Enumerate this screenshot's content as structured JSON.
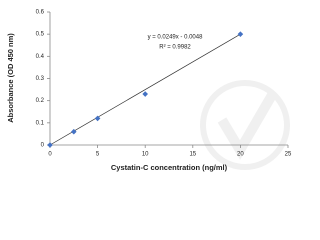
{
  "chart_data": {
    "type": "scatter",
    "x_label": "Cystatin-C concentration (ng/ml)",
    "y_label": "Absorbance (OD 450 nm)",
    "annotations": [
      "y = 0.0249x - 0.0048",
      "R² = 0.9982"
    ],
    "x": [
      0,
      2.5,
      5,
      10,
      20
    ],
    "values": [
      0,
      0.06,
      0.12,
      0.23,
      0.5
    ],
    "color": "#4472c4",
    "trendline": true,
    "grid": false,
    "xlim": [
      0,
      25
    ],
    "xticks": [
      0,
      5,
      10,
      15,
      20,
      25
    ],
    "ylim": [
      0,
      0.6
    ],
    "yticks": [
      0,
      0.1,
      0.2,
      0.3,
      0.4,
      0.5,
      0.6
    ]
  }
}
